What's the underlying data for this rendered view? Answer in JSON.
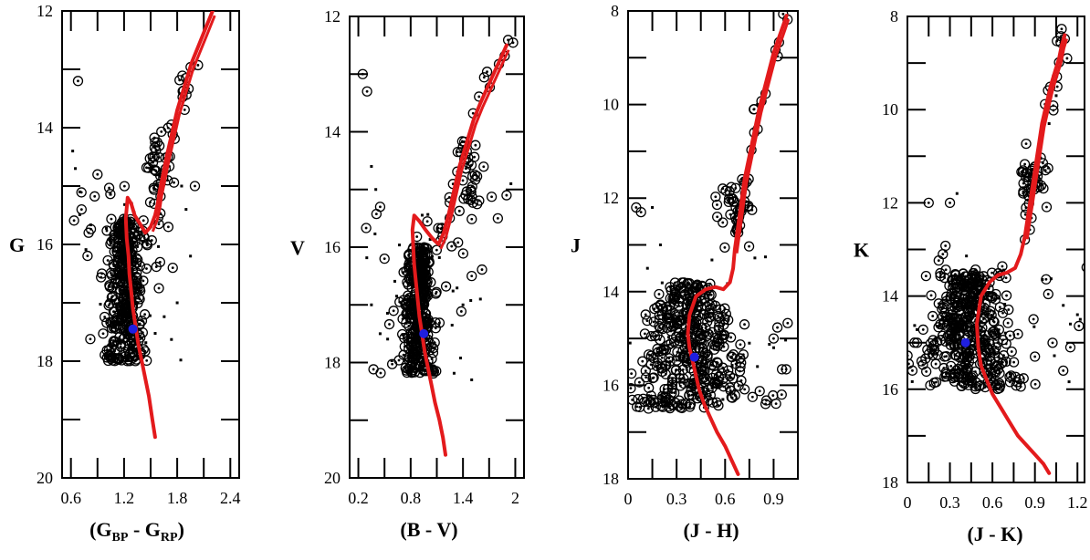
{
  "chart_data": [
    {
      "type": "scatter",
      "title": "",
      "xlabel": "(G",
      "xlabel_sub1": "BP",
      "xlabel_mid": " - G",
      "xlabel_sub2": "RP",
      "xlabel_end": ")",
      "ylabel": "G",
      "xlim": [
        0.5,
        2.5
      ],
      "ylim": [
        20,
        12
      ],
      "xticks": [
        "0.6",
        "1.2",
        "1.8",
        "2.4"
      ],
      "xtick_values": [
        0.6,
        1.2,
        1.8,
        2.4
      ],
      "yticks": [
        "12",
        "14",
        "16",
        "18",
        "20"
      ],
      "ytick_values": [
        12,
        14,
        16,
        18,
        20
      ],
      "ylabel_value": 16,
      "cluster": {
        "x_center": 1.22,
        "x_sd": 0.09,
        "y_min": 15.6,
        "y_max": 18.0,
        "n_members": 330,
        "n_field": 60
      },
      "giants": {
        "x_center": 1.6,
        "x_sd": 0.06,
        "y_center": 14.6,
        "y_sd": 0.35,
        "n": 30
      },
      "field_points": [
        [
          0.62,
          14.4
        ],
        [
          0.65,
          14.7
        ],
        [
          0.7,
          15.1
        ],
        [
          0.72,
          15.4
        ],
        [
          0.8,
          15.8
        ],
        [
          0.68,
          13.2
        ],
        [
          0.9,
          14.8
        ],
        [
          0.95,
          16.5
        ],
        [
          1.75,
          16.4
        ],
        [
          1.8,
          17.0
        ],
        [
          1.9,
          15.4
        ],
        [
          1.95,
          16.2
        ],
        [
          1.85,
          15.0
        ],
        [
          2.0,
          15.0
        ],
        [
          1.7,
          15.7
        ]
      ],
      "blue_point": {
        "x": 1.3,
        "y": 17.45
      },
      "isochrone": {
        "name": "isochrone",
        "color": "#e31a1c",
        "x": [
          1.55,
          1.52,
          1.48,
          1.44,
          1.4,
          1.36,
          1.33,
          1.3,
          1.28,
          1.26,
          1.25,
          1.23,
          1.22,
          1.24,
          1.28,
          1.32,
          1.38,
          1.44,
          1.5,
          1.55,
          1.58,
          1.6,
          1.64,
          1.68,
          1.74,
          1.8,
          1.88,
          1.96,
          2.04,
          2.12,
          2.2
        ],
        "y": [
          19.3,
          19.0,
          18.6,
          18.3,
          18.0,
          17.7,
          17.4,
          17.1,
          16.8,
          16.5,
          16.2,
          15.9,
          15.55,
          15.2,
          15.3,
          15.5,
          15.65,
          15.8,
          15.7,
          15.5,
          15.3,
          15.1,
          14.8,
          14.5,
          14.1,
          13.7,
          13.3,
          12.9,
          12.6,
          12.3,
          12.0
        ]
      }
    },
    {
      "type": "scatter",
      "title": "",
      "xlabel": "(B - V)",
      "ylabel": "V",
      "xlim": [
        0.1,
        2.1
      ],
      "ylim": [
        20,
        12
      ],
      "xticks": [
        "0.2",
        "0.8",
        "1.4",
        "2"
      ],
      "xtick_values": [
        0.2,
        0.8,
        1.4,
        2.0
      ],
      "yticks": [
        "12",
        "14",
        "16",
        "18",
        "20"
      ],
      "ytick_values": [
        12,
        14,
        16,
        18,
        20
      ],
      "ylabel_value": 16,
      "cluster": {
        "x_center": 0.9,
        "x_sd": 0.09,
        "y_min": 16.0,
        "y_max": 18.2,
        "n_members": 330,
        "n_field": 60
      },
      "giants": {
        "x_center": 1.5,
        "x_sd": 0.07,
        "y_center": 14.8,
        "y_sd": 0.4,
        "n": 30
      },
      "field_points": [
        [
          0.25,
          13.0
        ],
        [
          0.3,
          13.3
        ],
        [
          0.35,
          14.6
        ],
        [
          0.4,
          15.0
        ],
        [
          0.45,
          15.3
        ],
        [
          0.5,
          16.2
        ],
        [
          0.35,
          17.0
        ],
        [
          0.45,
          17.5
        ],
        [
          1.5,
          16.5
        ],
        [
          1.6,
          16.9
        ],
        [
          1.8,
          15.5
        ],
        [
          1.9,
          15.1
        ],
        [
          1.95,
          14.9
        ],
        [
          1.4,
          17.0
        ],
        [
          1.5,
          18.3
        ]
      ],
      "blue_point": {
        "x": 0.95,
        "y": 17.5
      },
      "isochrone": {
        "name": "isochrone",
        "color": "#e31a1c",
        "x": [
          1.2,
          1.17,
          1.13,
          1.08,
          1.04,
          1.0,
          0.96,
          0.93,
          0.9,
          0.88,
          0.86,
          0.84,
          0.83,
          0.82,
          0.84,
          0.9,
          0.97,
          1.05,
          1.12,
          1.18,
          1.24,
          1.3,
          1.36,
          1.44,
          1.52,
          1.6,
          1.66,
          1.72,
          1.78,
          1.84,
          1.9
        ],
        "y": [
          19.6,
          19.3,
          19.0,
          18.7,
          18.4,
          18.1,
          17.8,
          17.5,
          17.2,
          16.9,
          16.6,
          16.3,
          16.0,
          15.7,
          15.45,
          15.55,
          15.7,
          15.85,
          15.95,
          15.75,
          15.4,
          15.0,
          14.6,
          14.2,
          13.8,
          13.5,
          13.3,
          13.1,
          12.9,
          12.7,
          12.5
        ]
      }
    },
    {
      "type": "scatter",
      "title": "",
      "xlabel": "(J - H)",
      "ylabel": "J",
      "xlim": [
        0,
        1.05
      ],
      "ylim": [
        18,
        8
      ],
      "xticks": [
        "0",
        "0.3",
        "0.6",
        "0.9"
      ],
      "xtick_values": [
        0,
        0.3,
        0.6,
        0.9
      ],
      "yticks": [
        "8",
        "10",
        "12",
        "14",
        "16",
        "18"
      ],
      "ytick_values": [
        8,
        10,
        12,
        14,
        16,
        18
      ],
      "ylabel_value": 13,
      "cluster": {
        "x_center": 0.38,
        "x_sd": 0.15,
        "y_min": 13.8,
        "y_max": 16.5,
        "n_members": 380,
        "n_field": 60
      },
      "giants": {
        "x_center": 0.66,
        "x_sd": 0.05,
        "y_center": 12.3,
        "y_sd": 0.3,
        "n": 35
      },
      "field_points": [
        [
          0.05,
          12.2
        ],
        [
          0.08,
          12.3
        ],
        [
          0.15,
          12.2
        ],
        [
          0.2,
          13.0
        ],
        [
          0.12,
          13.5
        ],
        [
          0.7,
          15.4
        ],
        [
          0.8,
          15.6
        ],
        [
          0.85,
          16.4
        ],
        [
          0.95,
          16.2
        ],
        [
          0.78,
          10.6
        ],
        [
          0.8,
          10.0
        ],
        [
          0.9,
          15.0
        ],
        [
          0.7,
          15.9
        ],
        [
          0.75,
          15.1
        ],
        [
          0.72,
          14.7
        ]
      ],
      "blue_point": {
        "x": 0.41,
        "y": 15.4
      },
      "isochrone": {
        "name": "isochrone",
        "color": "#e31a1c",
        "x": [
          0.68,
          0.64,
          0.6,
          0.55,
          0.51,
          0.47,
          0.44,
          0.42,
          0.4,
          0.38,
          0.37,
          0.38,
          0.42,
          0.48,
          0.54,
          0.59,
          0.63,
          0.65,
          0.66,
          0.68,
          0.7,
          0.72,
          0.75,
          0.78,
          0.81,
          0.84,
          0.87,
          0.9,
          0.93,
          0.96,
          0.98
        ],
        "y": [
          17.9,
          17.6,
          17.3,
          17.0,
          16.7,
          16.4,
          16.1,
          15.8,
          15.5,
          15.2,
          14.9,
          14.5,
          14.1,
          13.95,
          13.9,
          13.95,
          13.8,
          13.5,
          13.1,
          12.6,
          12.1,
          11.6,
          11.1,
          10.6,
          10.1,
          9.7,
          9.3,
          8.9,
          8.6,
          8.3,
          8.1
        ]
      }
    },
    {
      "type": "scatter",
      "title": "",
      "xlabel": "(J - K)",
      "ylabel": "K",
      "xlim": [
        0,
        1.25
      ],
      "ylim": [
        18,
        8
      ],
      "xticks": [
        "0",
        "0.3",
        "0.6",
        "0.9",
        "1.2"
      ],
      "xtick_values": [
        0,
        0.3,
        0.6,
        0.9,
        1.2
      ],
      "yticks": [
        "8",
        "10",
        "12",
        "14",
        "16",
        "18"
      ],
      "ytick_values": [
        8,
        10,
        12,
        14,
        16,
        18
      ],
      "ylabel_value": 13,
      "cluster": {
        "x_center": 0.45,
        "x_sd": 0.15,
        "y_min": 13.5,
        "y_max": 16.0,
        "n_members": 380,
        "n_field": 60
      },
      "giants": {
        "x_center": 0.88,
        "x_sd": 0.05,
        "y_center": 11.4,
        "y_sd": 0.3,
        "n": 35
      },
      "field_points": [
        [
          0.05,
          15.0
        ],
        [
          0.1,
          15.4
        ],
        [
          0.15,
          12.0
        ],
        [
          0.3,
          12.0
        ],
        [
          0.35,
          11.8
        ],
        [
          0.25,
          13.1
        ],
        [
          1.1,
          14.2
        ],
        [
          1.15,
          14.6
        ],
        [
          1.2,
          14.4
        ],
        [
          1.22,
          14.5
        ],
        [
          1.0,
          10.3
        ],
        [
          1.05,
          9.7
        ],
        [
          1.1,
          15.6
        ],
        [
          0.9,
          15.3
        ],
        [
          1.15,
          15.1
        ]
      ],
      "blue_point": {
        "x": 0.41,
        "y": 15.0
      },
      "isochrone": {
        "name": "isochrone",
        "color": "#e31a1c",
        "x": [
          1.0,
          0.96,
          0.9,
          0.84,
          0.78,
          0.72,
          0.66,
          0.6,
          0.56,
          0.52,
          0.5,
          0.49,
          0.52,
          0.58,
          0.64,
          0.7,
          0.76,
          0.8,
          0.83,
          0.85,
          0.87,
          0.89,
          0.91,
          0.93,
          0.95,
          0.98,
          1.01,
          1.04,
          1.07,
          1.09,
          1.11
        ],
        "y": [
          17.8,
          17.6,
          17.4,
          17.2,
          17.0,
          16.7,
          16.4,
          16.1,
          15.8,
          15.5,
          15.1,
          14.6,
          14.0,
          13.7,
          13.55,
          13.5,
          13.4,
          13.1,
          12.7,
          12.3,
          11.9,
          11.5,
          11.1,
          10.7,
          10.3,
          9.9,
          9.5,
          9.2,
          8.9,
          8.6,
          8.4
        ]
      }
    }
  ]
}
